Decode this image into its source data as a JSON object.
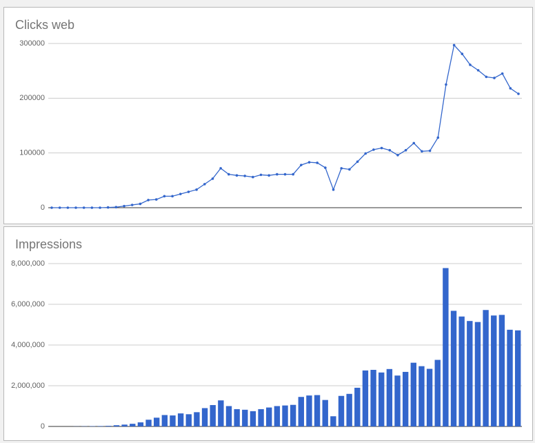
{
  "chart_data": [
    {
      "type": "line",
      "title": "Clicks web",
      "color": "#3366cc",
      "grid": true,
      "categories": [
        null,
        null,
        null,
        null,
        null,
        null,
        null,
        null,
        null,
        null,
        null,
        null,
        null,
        null,
        null,
        null,
        null,
        null,
        null,
        null,
        null,
        null,
        null,
        null,
        null,
        null,
        null,
        null,
        null,
        null,
        null,
        null,
        null,
        null,
        null,
        null,
        null,
        null,
        null,
        null,
        null,
        null,
        null,
        null,
        null,
        null,
        null,
        null,
        null,
        null,
        null,
        null,
        null,
        null,
        null,
        null,
        null,
        null,
        null
      ],
      "values": [
        0,
        0,
        0,
        0,
        0,
        0,
        0,
        500,
        1000,
        3000,
        5000,
        7000,
        14000,
        15000,
        21000,
        21000,
        25000,
        29000,
        33000,
        43000,
        53000,
        72000,
        61000,
        59000,
        58000,
        56000,
        60000,
        59000,
        61000,
        61000,
        61000,
        78000,
        83000,
        82000,
        73000,
        33000,
        72000,
        70000,
        84000,
        99000,
        106000,
        109000,
        105000,
        96000,
        105000,
        118000,
        103000,
        104000,
        128000,
        225000,
        297000,
        281000,
        261000,
        251000,
        239000,
        237000,
        245000,
        218000,
        208000
      ],
      "ylim": [
        0,
        300000
      ],
      "yticks": [
        0,
        100000,
        200000,
        300000
      ]
    },
    {
      "type": "bar",
      "title": "Impressions",
      "color": "#3366cc",
      "grid": true,
      "categories": [
        null,
        null,
        null,
        null,
        null,
        null,
        null,
        null,
        null,
        null,
        null,
        null,
        null,
        null,
        null,
        null,
        null,
        null,
        null,
        null,
        null,
        null,
        null,
        null,
        null,
        null,
        null,
        null,
        null,
        null,
        null,
        null,
        null,
        null,
        null,
        null,
        null,
        null,
        null,
        null,
        null,
        null,
        null,
        null,
        null,
        null,
        null,
        null,
        null,
        null,
        null,
        null,
        null,
        null,
        null,
        null,
        null,
        null,
        null
      ],
      "values": [
        0,
        0,
        0,
        5000,
        10000,
        15000,
        20000,
        30000,
        60000,
        90000,
        130000,
        200000,
        330000,
        430000,
        560000,
        540000,
        640000,
        600000,
        700000,
        900000,
        1050000,
        1280000,
        1000000,
        850000,
        820000,
        750000,
        850000,
        930000,
        1000000,
        1030000,
        1060000,
        1450000,
        1520000,
        1540000,
        1300000,
        500000,
        1500000,
        1600000,
        1900000,
        2750000,
        2780000,
        2650000,
        2820000,
        2500000,
        2680000,
        3130000,
        2960000,
        2830000,
        3270000,
        7780000,
        5680000,
        5400000,
        5180000,
        5130000,
        5720000,
        5450000,
        5480000,
        4750000,
        4720000
      ],
      "ylim": [
        0,
        8000000
      ],
      "yticks": [
        0,
        {
          "value": 2000000,
          "label": "2,000,000"
        },
        {
          "value": 4000000,
          "label": "4,000,000"
        },
        {
          "value": 6000000,
          "label": "6,000,000"
        },
        {
          "value": 8000000,
          "label": "8,000,000"
        }
      ]
    }
  ]
}
